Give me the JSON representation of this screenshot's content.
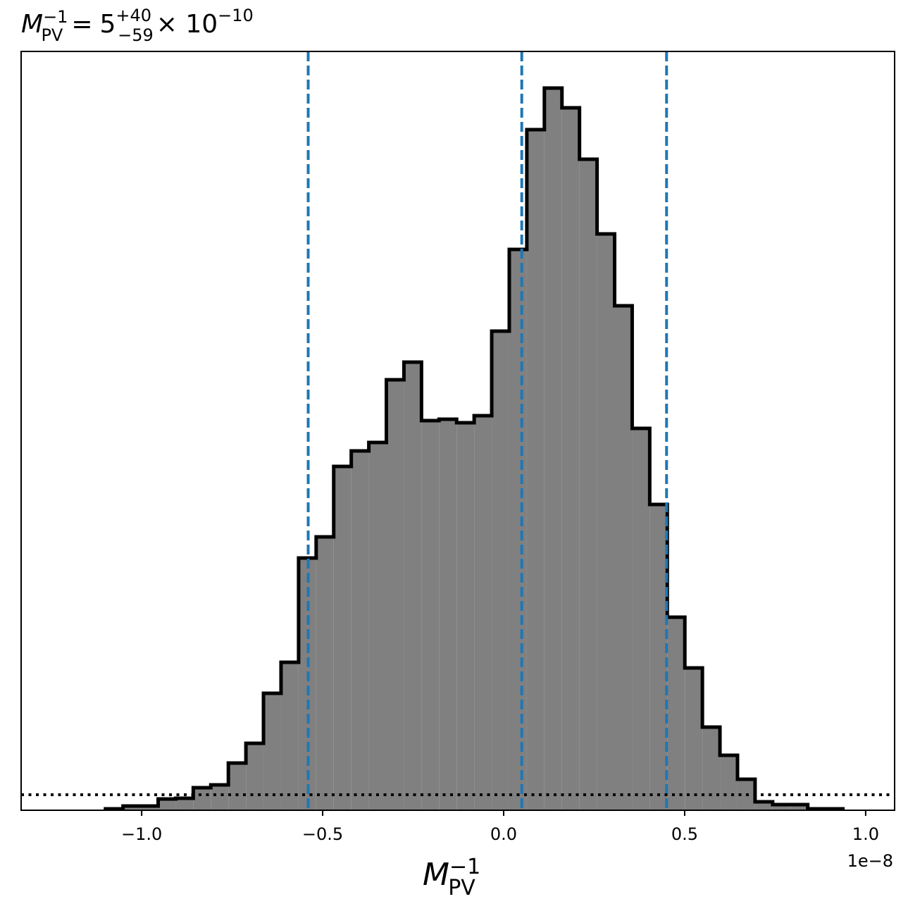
{
  "chart_data": {
    "type": "histogram",
    "title": {
      "symbol": "M",
      "sub": "PV",
      "sup": "−1",
      "eq": "=",
      "value": "5",
      "plus": "+40",
      "minus": "−59",
      "times": "× 10",
      "exp": "−10"
    },
    "xlabel": {
      "symbol": "M",
      "sub": "PV",
      "sup": "−1"
    },
    "x_offset_label": "1e−8",
    "bins": [
      -1.1,
      -1.0515,
      -1.003,
      -0.9545,
      -0.906,
      -0.8575,
      -0.809,
      -0.7605,
      -0.712,
      -0.6635,
      -0.615,
      -0.5665,
      -0.518,
      -0.4695,
      -0.421,
      -0.3725,
      -0.324,
      -0.2755,
      -0.227,
      -0.1785,
      -0.13,
      -0.0815,
      -0.033,
      0.0155,
      0.064,
      0.1125,
      0.161,
      0.2095,
      0.258,
      0.3065,
      0.355,
      0.4035,
      0.452,
      0.5005,
      0.549,
      0.5975,
      0.646,
      0.6945,
      0.743,
      0.7915,
      0.84,
      0.8885,
      0.937
    ],
    "values": [
      0.002,
      0.006,
      0.006,
      0.016,
      0.017,
      0.032,
      0.036,
      0.067,
      0.095,
      0.166,
      0.21,
      0.358,
      0.388,
      0.488,
      0.51,
      0.522,
      0.611,
      0.636,
      0.553,
      0.555,
      0.55,
      0.56,
      0.68,
      0.796,
      0.966,
      1.025,
      0.997,
      0.924,
      0.818,
      0.716,
      0.542,
      0.434,
      0.274,
      0.202,
      0.118,
      0.078,
      0.044,
      0.012,
      0.008,
      0.008,
      0.002,
      0.002
    ],
    "color": "#808080",
    "edge_color": "#000000",
    "quantile_lines": [
      -0.54,
      0.05,
      0.45
    ],
    "quantile_color": "#1f77b4",
    "threshold": 0.022,
    "threshold_color": "#000000",
    "xlim": [
      -1.333,
      1.08
    ],
    "ylim": [
      0,
      1.077
    ],
    "xticks": [
      {
        "value": -1.0,
        "label": "−1.0"
      },
      {
        "value": -0.5,
        "label": "−0.5"
      },
      {
        "value": 0.0,
        "label": "0.0"
      },
      {
        "value": 0.5,
        "label": "0.5"
      },
      {
        "value": 1.0,
        "label": "1.0"
      }
    ]
  }
}
